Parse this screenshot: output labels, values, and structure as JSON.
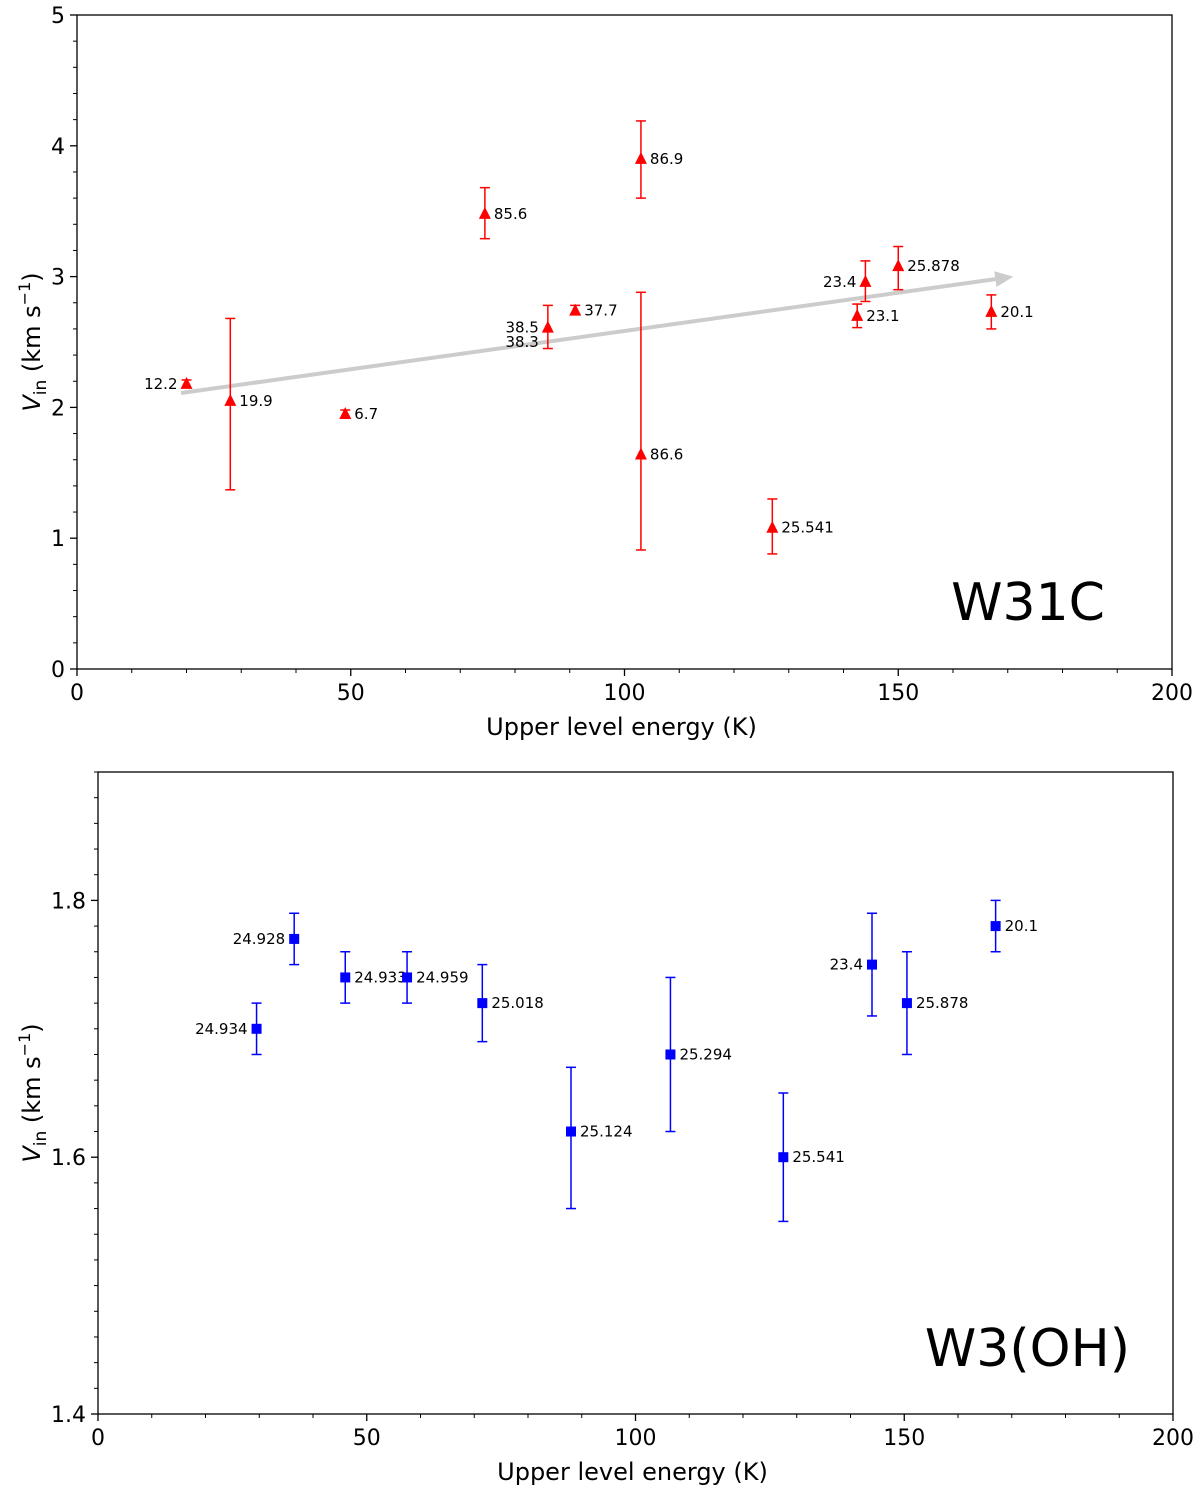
{
  "chart_data": [
    {
      "type": "scatter",
      "panel_label": "W31C",
      "xlabel": "Upper level energy (K)",
      "ylabel_main": "V",
      "ylabel_sub": "in",
      "ylabel_unit_open": " (km s",
      "ylabel_unit_exp": "−1",
      "ylabel_unit_close": ")",
      "xlim": [
        0,
        200
      ],
      "ylim": [
        0,
        5
      ],
      "xticks": [
        0,
        50,
        100,
        150,
        200
      ],
      "yticks": [
        0,
        1,
        2,
        3,
        4,
        5
      ],
      "marker": "triangle",
      "color": "#ff0000",
      "trend_color": "#cccccc",
      "trend_arrow": {
        "x0": 19,
        "y0": 2.11,
        "x1": 171,
        "y1": 3.0
      },
      "points": [
        {
          "x": 20.0,
          "y": 2.18,
          "err_lo": 0.03,
          "err_hi": 0.03,
          "label": "12.2",
          "side": "left"
        },
        {
          "x": 28.0,
          "y": 2.05,
          "err_lo": 0.68,
          "err_hi": 0.63,
          "label": "19.9",
          "side": "right"
        },
        {
          "x": 49.0,
          "y": 1.95,
          "err_lo": 0.03,
          "err_hi": 0.03,
          "label": "6.7",
          "side": "right"
        },
        {
          "x": 74.5,
          "y": 3.48,
          "err_lo": 0.19,
          "err_hi": 0.2,
          "label": "85.6",
          "side": "right"
        },
        {
          "x": 86.0,
          "y": 2.61,
          "err_lo": 0.16,
          "err_hi": 0.17,
          "label": "38.5",
          "side": "left"
        },
        {
          "x": 86.0,
          "y": 2.5,
          "err_lo": 0.0,
          "err_hi": 0.0,
          "label": "38.3",
          "side": "left",
          "no_marker": true
        },
        {
          "x": 91.0,
          "y": 2.74,
          "err_lo": 0.03,
          "err_hi": 0.04,
          "label": "37.7",
          "side": "right"
        },
        {
          "x": 103.0,
          "y": 3.9,
          "err_lo": 0.3,
          "err_hi": 0.29,
          "label": "86.9",
          "side": "right"
        },
        {
          "x": 103.0,
          "y": 1.64,
          "err_lo": 0.73,
          "err_hi": 1.24,
          "label": "86.6",
          "side": "right"
        },
        {
          "x": 127.0,
          "y": 1.08,
          "err_lo": 0.2,
          "err_hi": 0.22,
          "label": "25.541",
          "side": "right"
        },
        {
          "x": 142.5,
          "y": 2.7,
          "err_lo": 0.09,
          "err_hi": 0.09,
          "label": "23.1",
          "side": "right"
        },
        {
          "x": 144.0,
          "y": 2.96,
          "err_lo": 0.15,
          "err_hi": 0.16,
          "label": "23.4",
          "side": "left"
        },
        {
          "x": 150.0,
          "y": 3.08,
          "err_lo": 0.18,
          "err_hi": 0.15,
          "label": "25.878",
          "side": "right"
        },
        {
          "x": 167.0,
          "y": 2.73,
          "err_lo": 0.13,
          "err_hi": 0.13,
          "label": "20.1",
          "side": "right"
        }
      ]
    },
    {
      "type": "scatter",
      "panel_label": "W3(OH)",
      "xlabel": "Upper level energy (K)",
      "ylabel_main": "V",
      "ylabel_sub": "in",
      "ylabel_unit_open": " (km s",
      "ylabel_unit_exp": "−1",
      "ylabel_unit_close": ")",
      "xlim": [
        0,
        200
      ],
      "ylim": [
        1.4,
        1.9
      ],
      "xticks": [
        0,
        50,
        100,
        150,
        200
      ],
      "yticks": [
        1.4,
        1.6,
        1.8
      ],
      "ytick_labels": [
        "1.4",
        "1.6",
        "1.8"
      ],
      "marker": "square",
      "color": "#0000ff",
      "points": [
        {
          "x": 29.5,
          "y": 1.7,
          "err_lo": 0.02,
          "err_hi": 0.02,
          "label": "24.934",
          "side": "left"
        },
        {
          "x": 36.5,
          "y": 1.77,
          "err_lo": 0.02,
          "err_hi": 0.02,
          "label": "24.928",
          "side": "left"
        },
        {
          "x": 46.0,
          "y": 1.74,
          "err_lo": 0.02,
          "err_hi": 0.02,
          "label": "24.933",
          "side": "right"
        },
        {
          "x": 57.5,
          "y": 1.74,
          "err_lo": 0.02,
          "err_hi": 0.02,
          "label": "24.959",
          "side": "right"
        },
        {
          "x": 71.5,
          "y": 1.72,
          "err_lo": 0.03,
          "err_hi": 0.03,
          "label": "25.018",
          "side": "right"
        },
        {
          "x": 88.0,
          "y": 1.62,
          "err_lo": 0.06,
          "err_hi": 0.05,
          "label": "25.124",
          "side": "right"
        },
        {
          "x": 106.5,
          "y": 1.68,
          "err_lo": 0.06,
          "err_hi": 0.06,
          "label": "25.294",
          "side": "right"
        },
        {
          "x": 127.5,
          "y": 1.6,
          "err_lo": 0.05,
          "err_hi": 0.05,
          "label": "25.541",
          "side": "right"
        },
        {
          "x": 144.0,
          "y": 1.75,
          "err_lo": 0.04,
          "err_hi": 0.04,
          "label": "23.4",
          "side": "left"
        },
        {
          "x": 150.5,
          "y": 1.72,
          "err_lo": 0.04,
          "err_hi": 0.04,
          "label": "25.878",
          "side": "right"
        },
        {
          "x": 167.0,
          "y": 1.78,
          "err_lo": 0.02,
          "err_hi": 0.02,
          "label": "20.1",
          "side": "right"
        }
      ]
    }
  ]
}
